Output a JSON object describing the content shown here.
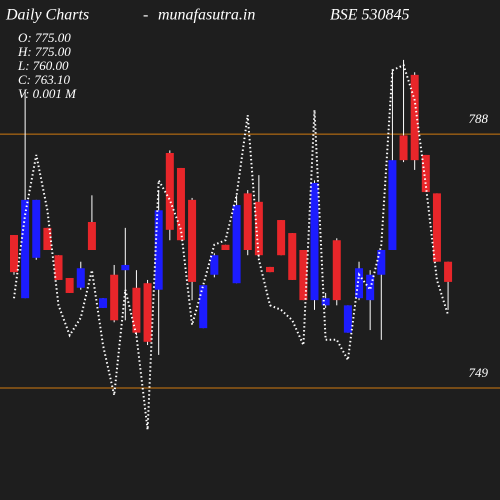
{
  "chart_data": {
    "type": "candlestick",
    "title": "Daily Charts",
    "separator": "-",
    "site": "munafasutra.in",
    "symbol": "BSE 530845",
    "info": [
      "O: 775.00",
      "H: 775.00",
      "L: 760.00",
      "C: 763.10",
      "V: 0.001 M"
    ],
    "up_color": "#1c1cff",
    "down_color": "#e8262a",
    "line_color": "#ffffff",
    "level_color": "#d07a10",
    "ylim": [
      731.8,
      808.6
    ],
    "yticks": [
      749,
      788
    ],
    "open": [
      772.5,
      762.8,
      769.0,
      773.6,
      769.4,
      765.9,
      764.4,
      774.5,
      761.3,
      766.4,
      767.1,
      764.4,
      765.1,
      764.1,
      785.1,
      782.8,
      777.9,
      758.2,
      766.4,
      771.0,
      765.1,
      778.9,
      777.6,
      767.6,
      774.8,
      772.8,
      770.2,
      762.5,
      761.7,
      771.7,
      757.5,
      762.8,
      762.5,
      766.4,
      770.2,
      787.8,
      797.1,
      784.8,
      778.9,
      768.4
    ],
    "high": [
      772.5,
      794.8,
      777.9,
      773.6,
      769.4,
      765.9,
      768.4,
      778.6,
      762.8,
      767.9,
      773.6,
      767.1,
      765.6,
      779.4,
      785.5,
      782.8,
      778.2,
      764.8,
      769.7,
      771.0,
      778.6,
      779.4,
      781.7,
      767.6,
      774.8,
      772.8,
      770.2,
      780.9,
      763.6,
      772.0,
      761.7,
      768.4,
      767.1,
      770.2,
      797.8,
      799.4,
      797.5,
      784.8,
      778.9,
      768.4
    ],
    "low": [
      766.4,
      762.8,
      768.7,
      770.2,
      765.6,
      763.6,
      764.1,
      770.2,
      761.3,
      759.1,
      759.4,
      757.1,
      755.6,
      754.1,
      771.7,
      771.7,
      762.5,
      758.2,
      766.0,
      770.2,
      765.1,
      769.4,
      769.1,
      766.8,
      769.4,
      765.6,
      762.5,
      761.0,
      761.3,
      761.7,
      757.5,
      762.5,
      757.9,
      756.4,
      770.2,
      783.7,
      782.5,
      779.1,
      768.4,
      761.0
    ],
    "close": [
      766.8,
      777.9,
      777.9,
      770.2,
      765.6,
      763.6,
      767.4,
      770.2,
      762.8,
      759.4,
      767.9,
      757.5,
      756.1,
      776.3,
      773.3,
      771.7,
      765.3,
      764.8,
      769.4,
      770.2,
      777.1,
      770.2,
      769.4,
      766.8,
      769.4,
      765.6,
      762.5,
      780.5,
      762.8,
      762.5,
      761.7,
      767.4,
      766.4,
      770.2,
      784.0,
      784.0,
      784.0,
      779.1,
      768.4,
      765.3
    ],
    "ma": [
      762.8,
      775.6,
      784.8,
      776.3,
      761.7,
      757.1,
      759.8,
      767.1,
      755.6,
      747.9,
      764.1,
      757.1,
      742.6,
      780.9,
      777.9,
      773.3,
      758.7,
      764.8,
      771.0,
      771.7,
      778.6,
      790.9,
      768.7,
      761.7,
      761.0,
      759.4,
      755.6,
      791.7,
      756.4,
      756.4,
      753.3,
      766.4,
      764.1,
      771.0,
      797.8,
      798.6,
      793.2,
      780.2,
      765.6,
      760.2
    ]
  }
}
